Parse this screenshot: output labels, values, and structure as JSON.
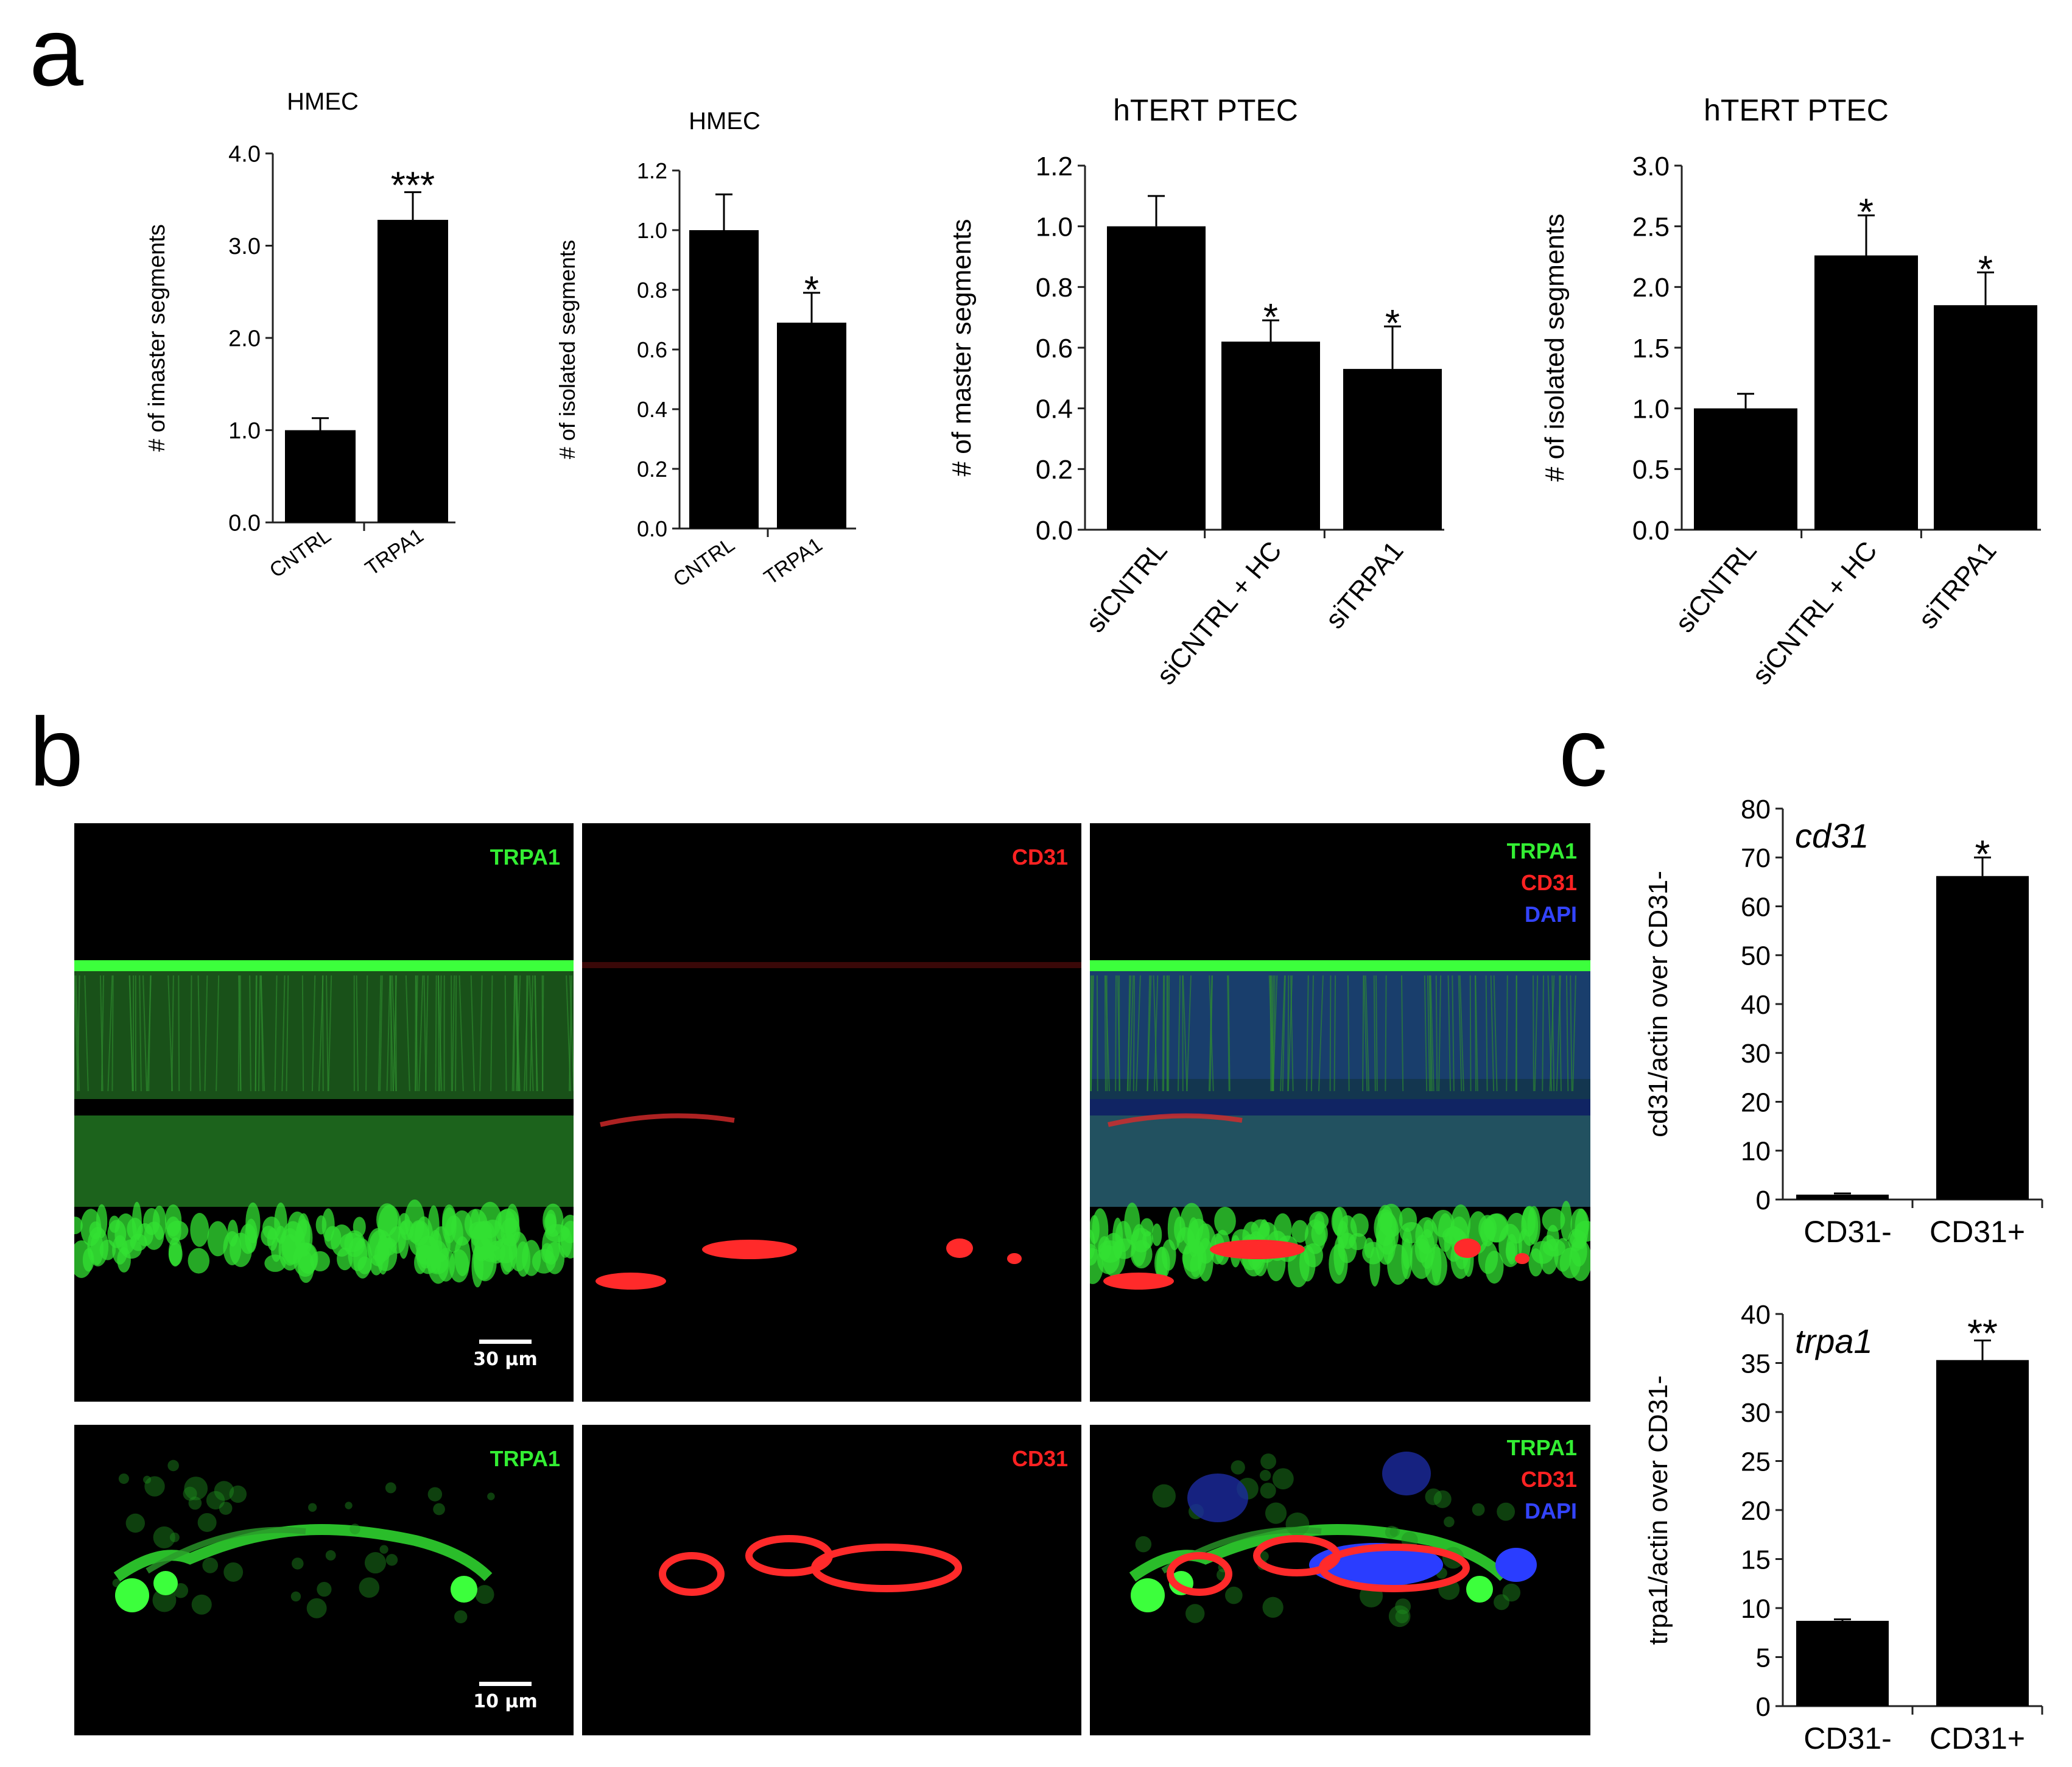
{
  "panel_letters": [
    "a",
    "b",
    "c"
  ],
  "chart_data": [
    {
      "type": "bar",
      "title": "HMEC",
      "xlabel": "",
      "ylabel": "# of imaster segments",
      "categories": [
        "CNTRL",
        "TRPA1"
      ],
      "values": [
        1.0,
        3.28
      ],
      "errors": [
        0.13,
        0.3
      ],
      "significance": [
        "",
        "***"
      ],
      "ylim": [
        0,
        4
      ],
      "yticks": [
        "0.0",
        "1.0",
        "2.0",
        "3.0",
        "4.0"
      ],
      "grid": false,
      "bar_color": "#000000"
    },
    {
      "type": "bar",
      "title": "HMEC",
      "xlabel": "",
      "ylabel": "# of isolated segments",
      "categories": [
        "CNTRL",
        "TRPA1"
      ],
      "values": [
        1.0,
        0.69
      ],
      "errors": [
        0.12,
        0.1
      ],
      "significance": [
        "",
        "*"
      ],
      "ylim": [
        0,
        1.2
      ],
      "yticks": [
        "0.0",
        "0.2",
        "0.4",
        "0.6",
        "0.8",
        "1.0",
        "1.2"
      ],
      "grid": false,
      "bar_color": "#000000"
    },
    {
      "type": "bar",
      "title": "hTERT PTEC",
      "xlabel": "",
      "ylabel": "# of master segments",
      "categories": [
        "siCNTRL",
        "siCNTRL + HC",
        "siTRPA1"
      ],
      "values": [
        1.0,
        0.62,
        0.53
      ],
      "errors": [
        0.1,
        0.07,
        0.14
      ],
      "significance": [
        "",
        "*",
        "*"
      ],
      "ylim": [
        0,
        1.2
      ],
      "yticks": [
        "0.0",
        "0.2",
        "0.4",
        "0.6",
        "0.8",
        "1.0",
        "1.2"
      ],
      "grid": false,
      "bar_color": "#000000"
    },
    {
      "type": "bar",
      "title": "hTERT PTEC",
      "xlabel": "",
      "ylabel": "# of isolated segments",
      "categories": [
        "siCNTRL",
        "siCNTRL + HC",
        "siTRPA1"
      ],
      "values": [
        1.0,
        2.26,
        1.85
      ],
      "errors": [
        0.12,
        0.33,
        0.27
      ],
      "significance": [
        "",
        "*",
        "*"
      ],
      "ylim": [
        0,
        3
      ],
      "yticks": [
        "0.0",
        "0.5",
        "1.0",
        "1.5",
        "2.0",
        "2.5",
        "3.0"
      ],
      "grid": false,
      "bar_color": "#000000"
    },
    {
      "type": "bar",
      "title": "",
      "annotation": "cd31",
      "xlabel": "",
      "ylabel": "cd31/actin over CD31-",
      "categories": [
        "CD31-",
        "CD31+"
      ],
      "values": [
        1.0,
        66.2
      ],
      "errors": [
        0,
        3.8
      ],
      "significance": [
        "",
        "*"
      ],
      "ylim": [
        0,
        80
      ],
      "yticks": [
        "0",
        "10",
        "20",
        "30",
        "40",
        "50",
        "60",
        "70",
        "80"
      ],
      "grid": false,
      "bar_color": "#000000"
    },
    {
      "type": "bar",
      "title": "",
      "annotation": "trpa1",
      "xlabel": "",
      "ylabel": "trpa1/actin over CD31-",
      "categories": [
        "CD31-",
        "CD31+"
      ],
      "values": [
        8.7,
        35.3
      ],
      "errors": [
        0.15,
        2.0
      ],
      "significance": [
        "",
        "**"
      ],
      "ylim": [
        0,
        40
      ],
      "yticks": [
        "0",
        "5",
        "10",
        "15",
        "20",
        "25",
        "30",
        "35",
        "40"
      ],
      "grid": false,
      "bar_color": "#000000"
    }
  ],
  "micrographs": {
    "rows": [
      {
        "scale_bar": "30 µm",
        "panels": [
          {
            "labels": [
              "TRPA1"
            ],
            "colors": [
              "#33ee33"
            ]
          },
          {
            "labels": [
              "CD31"
            ],
            "colors": [
              "#ff2222"
            ]
          },
          {
            "labels": [
              "TRPA1",
              "CD31",
              "DAPI"
            ],
            "colors": [
              "#33ee33",
              "#ff2222",
              "#3344ff"
            ]
          }
        ]
      },
      {
        "scale_bar": "10 µm",
        "panels": [
          {
            "labels": [
              "TRPA1"
            ],
            "colors": [
              "#33ee33"
            ]
          },
          {
            "labels": [
              "CD31"
            ],
            "colors": [
              "#ff2222"
            ]
          },
          {
            "labels": [
              "TRPA1",
              "CD31",
              "DAPI"
            ],
            "colors": [
              "#33ee33",
              "#ff2222",
              "#3344ff"
            ]
          }
        ]
      }
    ]
  }
}
